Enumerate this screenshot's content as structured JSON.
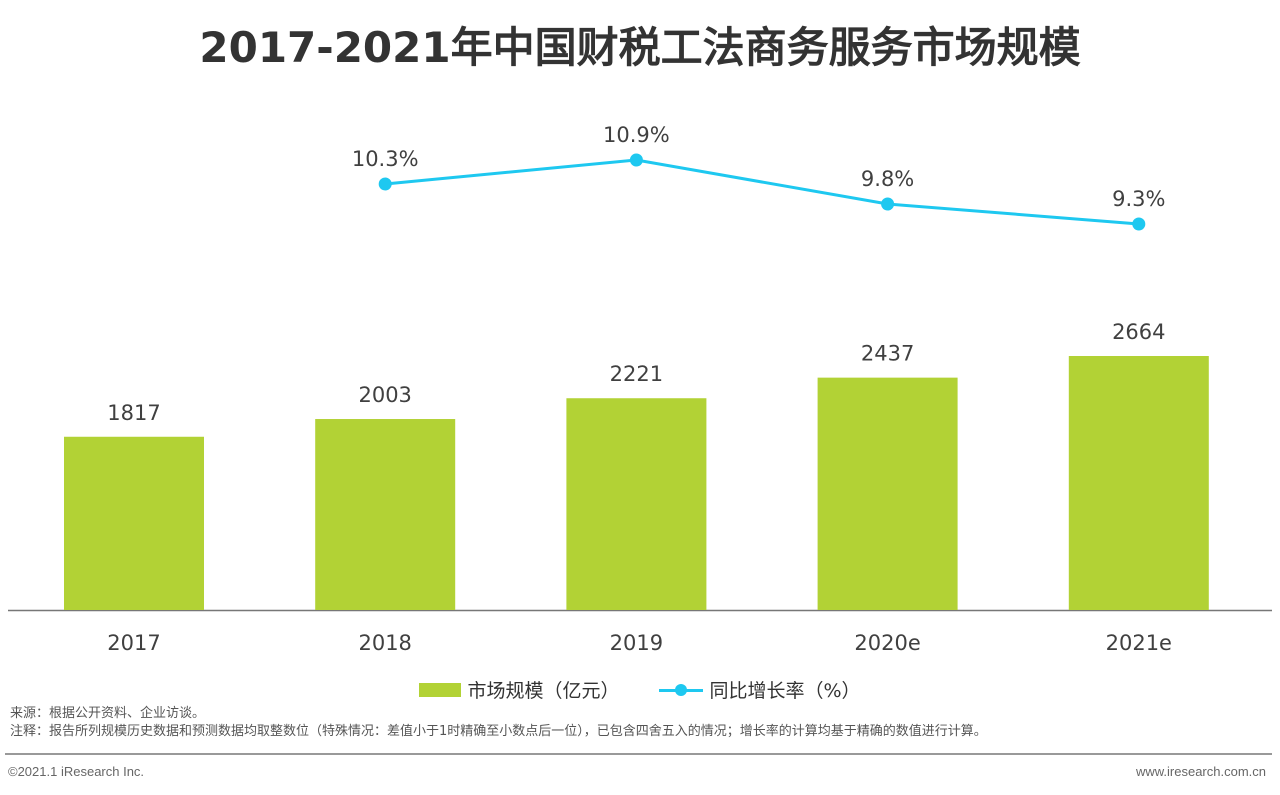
{
  "chart_data": {
    "type": "bar",
    "title": "2017-2021年中国财税工法商务服务市场规模",
    "categories": [
      "2017",
      "2018",
      "2019",
      "2020e",
      "2021e"
    ],
    "series": [
      {
        "name": "市场规模（亿元）",
        "type": "bar",
        "values": [
          1817,
          2003,
          2221,
          2437,
          2664
        ],
        "labels": [
          "1817",
          "2003",
          "2221",
          "2437",
          "2664"
        ],
        "color": "#b2d235"
      },
      {
        "name": "同比增长率（%）",
        "type": "line",
        "values": [
          null,
          10.3,
          10.9,
          9.8,
          9.3
        ],
        "labels": [
          "",
          "10.3%",
          "10.9%",
          "9.8%",
          "9.3%"
        ],
        "color": "#1ec8f0"
      }
    ],
    "grid": false,
    "legend": "bottom"
  },
  "notes": {
    "source": "来源：根据公开资料、企业访谈。",
    "remark": "注释：报告所列规模历史数据和预测数据均取整数位（特殊情况：差值小于1时精确至小数点后一位），已包含四舍五入的情况；增长率的计算均基于精确的数值进行计算。"
  },
  "footer": {
    "copyright": "©2021.1 iResearch Inc.",
    "website": "www.iresearch.com.cn"
  }
}
